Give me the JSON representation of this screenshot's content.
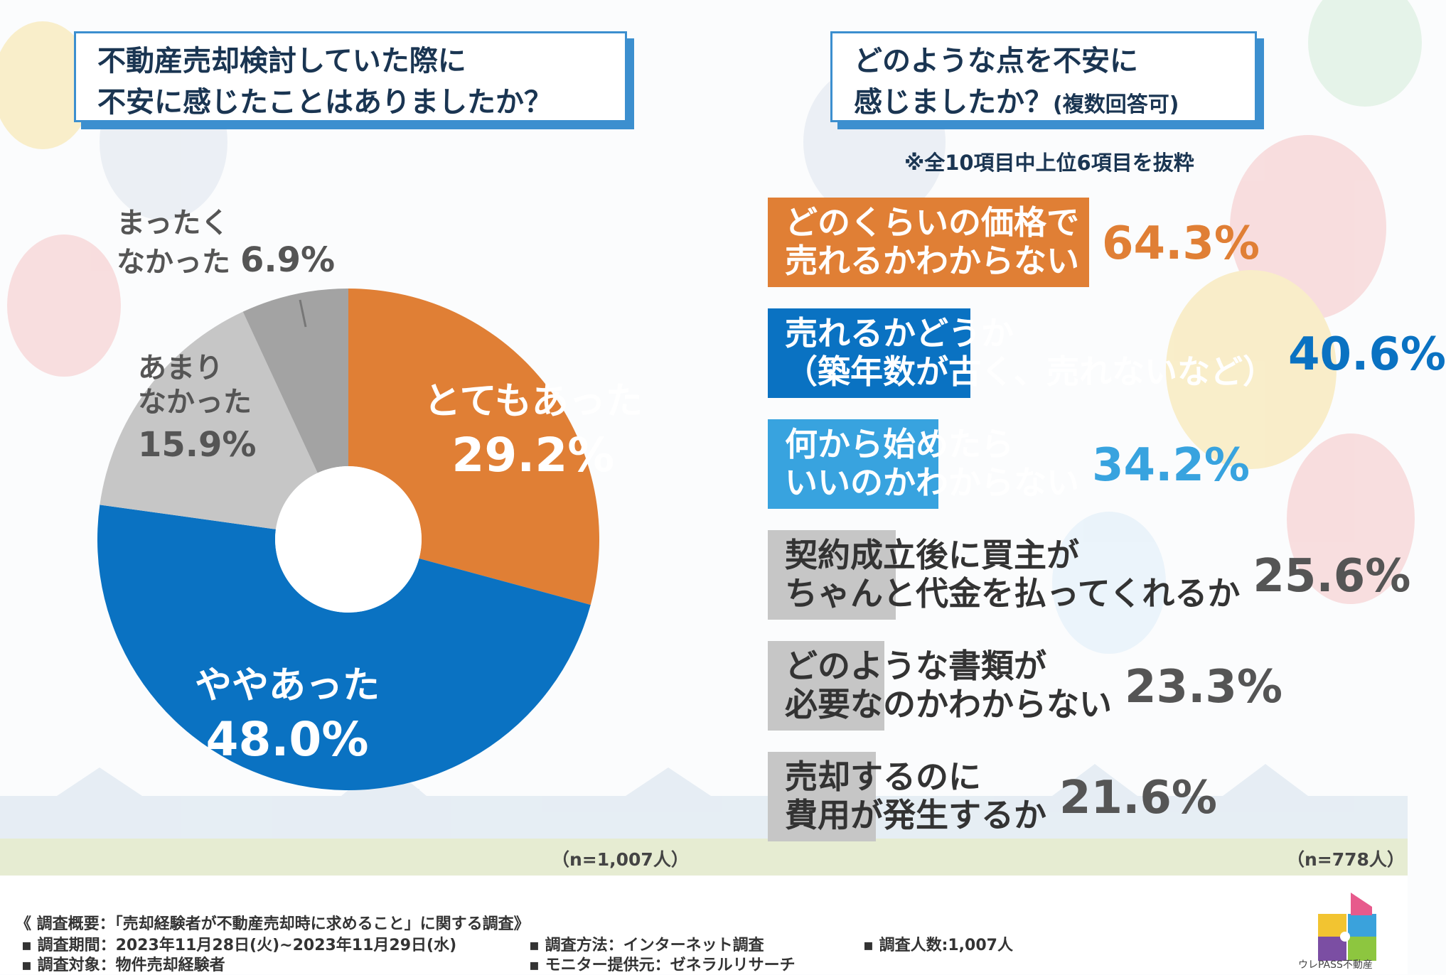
{
  "left": {
    "title_line1": "不動産売却検討していた際に",
    "title_line2": "不安に感じたことはありましたか？",
    "n_label": "（n=1,007人）"
  },
  "right": {
    "title_line1": "どのような点を不安に",
    "title_line2_main": "感じましたか？",
    "title_line2_sub": "(複数回答可)",
    "note": "※全10項目中上位6項目を抜粋",
    "n_label": "（n=778人）"
  },
  "chart_data": [
    {
      "type": "pie",
      "title": "不動産売却検討していた際に不安に感じたことはありましたか？",
      "categories": [
        "とてもあった",
        "ややあった",
        "あまりなかった",
        "まったくなかった"
      ],
      "values": [
        29.2,
        48.0,
        15.9,
        6.9
      ],
      "labels": [
        {
          "line1": "とてもあった",
          "line2": "",
          "pct": "29.2%"
        },
        {
          "line1": "ややあった",
          "line2": "",
          "pct": "48.0%"
        },
        {
          "line1": "あまり",
          "line2": "なかった",
          "pct": "15.9%"
        },
        {
          "line1": "まったく",
          "line2": "なかった",
          "pct": "6.9%"
        }
      ],
      "colors": [
        "#e07f35",
        "#0a72c2",
        "#c6c6c6",
        "#a3a3a3"
      ],
      "n": "（n=1,007人）"
    },
    {
      "type": "bar",
      "orientation": "horizontal",
      "title": "どのような点を不安に感じましたか？(複数回答可)",
      "categories": [
        "どのくらいの価格で売れるかわからない",
        "売れるかどうか（築年数が古く、売れないなど）",
        "何から始めたらいいのかわからない",
        "契約成立後に買主がちゃんと代金を払ってくれるか",
        "どのような書類が必要なのかわからない",
        "売却するのに費用が発生するか"
      ],
      "lines": [
        [
          "どのくらいの価格で",
          "売れるかわからない"
        ],
        [
          "売れるかどうか",
          "（築年数が古く、売れないなど）"
        ],
        [
          "何から始めたら",
          "いいのかわからない"
        ],
        [
          "契約成立後に買主が",
          "ちゃんと代金を払ってくれるか"
        ],
        [
          "どのような書類が",
          "必要なのかわからない"
        ],
        [
          "売却するのに",
          "費用が発生するか"
        ]
      ],
      "values": [
        64.3,
        40.6,
        34.2,
        25.6,
        23.3,
        21.6
      ],
      "value_labels": [
        "64.3%",
        "40.6%",
        "34.2%",
        "25.6%",
        "23.3%",
        "21.6%"
      ],
      "colors": [
        "#e07f35",
        "#0a72c2",
        "#38a3df",
        "#c6c6c6",
        "#c6c6c6",
        "#c6c6c6"
      ],
      "text_colors": [
        "#ffffff",
        "#ffffff",
        "#ffffff",
        "#333333",
        "#333333",
        "#333333"
      ],
      "value_colors": [
        "#e07f35",
        "#0a72c2",
        "#38a3df",
        "#555555",
        "#555555",
        "#555555"
      ],
      "n": "（n=778人）"
    }
  ],
  "survey": {
    "heading": "《 調査概要：「売却経験者が不動産売却時に求めること」に関する調査》",
    "period": "▪ 調査期間：2023年11月28日(火)~2023年11月29日(水)",
    "method": "▪ 調査方法：インターネット調査",
    "people": "▪ 調査人数:1,007人",
    "target": "▪ 調査対象：物件売却経験者",
    "provider": "▪ モニター提供元：ゼネラルリサーチ"
  },
  "logo": {
    "text": "ウレPASS不動産",
    "colors": [
      "#e75a8c",
      "#7b4ea3",
      "#f2c431",
      "#3aa2dc",
      "#8dc63f"
    ]
  }
}
